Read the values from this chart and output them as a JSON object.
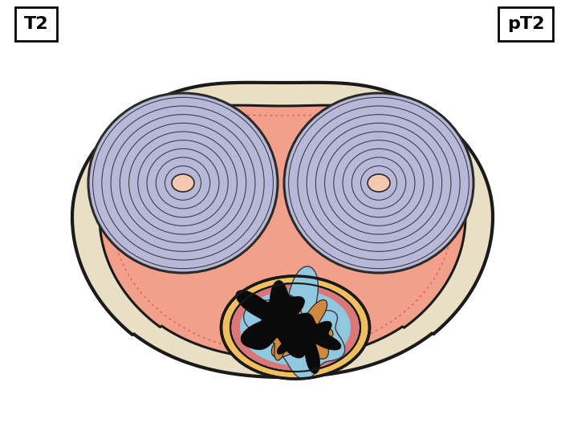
{
  "title_left": "T2",
  "title_right": "pT2",
  "title_fontsize": 16,
  "bg_color": "#ffffff",
  "outer_shell_color": "#e8dfc5",
  "outer_shell_edge": "#1a1a1a",
  "inner_body_color": "#f2a08a",
  "inner_body_edge": "#1a1a1a",
  "dotted_line_color": "#e05050",
  "corpus_color": "#b8b8d8",
  "corpus_edge": "#2a2a2a",
  "center_dot_color": "#f5c8b0",
  "urethra_gold_color": "#f0c060",
  "urethra_pink_color": "#d87878",
  "urethra_blue_color": "#90c8e0",
  "urethra_edge": "#1a1a1a",
  "tumor_color": "#0a0a0a",
  "tumor_orange_color": "#d08840",
  "fig_width": 7.04,
  "fig_height": 5.42,
  "fig_dpi": 100
}
